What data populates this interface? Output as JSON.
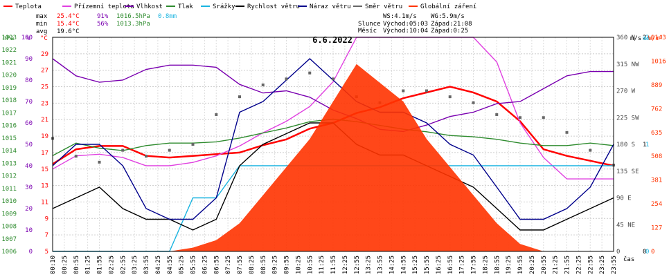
{
  "chart_data": {
    "type": "line",
    "title": "6.6.2022",
    "legend": [
      {
        "name": "Teplota",
        "color": "#ff0000"
      },
      {
        "name": "Přízemní teplota",
        "color": "#e040e0"
      },
      {
        "name": "Vlhkost",
        "color": "#7a00b0"
      },
      {
        "name": "Tlak",
        "color": "#2e8b2e"
      },
      {
        "name": "Srážky",
        "color": "#19b4e0"
      },
      {
        "name": "Rychlost větru",
        "color": "#000000"
      },
      {
        "name": "Náraz větru",
        "color": "#00008b"
      },
      {
        "name": "Směr větru",
        "color": "#666666"
      },
      {
        "name": "Globální záření",
        "color": "#ff3300"
      }
    ],
    "stats": {
      "max": {
        "label": "max",
        "temp": "25.4°C",
        "hum": "91%",
        "press": "1016.5hPa",
        "rain": "0.8mm"
      },
      "min": {
        "label": "min",
        "temp": "15.4°C",
        "hum": "56%",
        "press": "1013.3hPa"
      },
      "avg": {
        "label": "avg",
        "temp": "19.6°C"
      }
    },
    "astro": {
      "ws": "WS:4.1m/s",
      "wg": "WG:5.9m/s",
      "slunce_label": "Slunce",
      "slunce_rise": "Východ:05:03",
      "slunce_set": "Západ:21:08",
      "mesic_label": "Měsíc",
      "mesic_rise": "Východ:10:04",
      "mesic_set": "Západ:0:25"
    },
    "axes": {
      "hpa": {
        "unit": "hPa",
        "ticks": [
          "1006",
          "1007",
          "1008",
          "1009",
          "1010",
          "1011",
          "1012",
          "1013",
          "1014",
          "1015",
          "1016",
          "1017",
          "1018",
          "1019",
          "1020",
          "1021",
          "1022",
          "1023"
        ],
        "range": [
          1006,
          1023
        ]
      },
      "pct": {
        "unit": "%",
        "ticks": [
          "0",
          "10",
          "20",
          "30",
          "40",
          "50",
          "60",
          "70",
          "80",
          "90",
          "100"
        ],
        "range": [
          0,
          100
        ]
      },
      "temp": {
        "unit": "°C",
        "ticks": [
          "5",
          "7",
          "9",
          "11",
          "13",
          "15",
          "17",
          "19",
          "21",
          "23",
          "25",
          "27",
          "29"
        ],
        "range": [
          5,
          31
        ]
      },
      "wdir": {
        "unit": "m/s",
        "ticks": [
          {
            "v": 0,
            "t": "0"
          },
          {
            "v": 45,
            "t": "45 NE"
          },
          {
            "v": 90,
            "t": "90 E"
          },
          {
            "v": 135,
            "t": "135 SE"
          },
          {
            "v": 180,
            "t": "180 S"
          },
          {
            "v": 225,
            "t": "225 SW"
          },
          {
            "v": 270,
            "t": "270 W"
          },
          {
            "v": 315,
            "t": "315 NW"
          },
          {
            "v": 360,
            "t": "360 N"
          }
        ],
        "range": [
          0,
          360
        ]
      },
      "ms": {
        "ticks": [
          "0",
          "1",
          "2"
        ],
        "range": [
          0,
          2
        ]
      },
      "mm": {
        "unit": "mm",
        "ticks": [
          "0",
          "1",
          "2"
        ],
        "range": [
          0,
          2
        ]
      },
      "wm2": {
        "unit": "W/m²",
        "ticks": [
          "0",
          "127",
          "254",
          "381",
          "508",
          "635",
          "762",
          "889",
          "1016",
          "1143"
        ],
        "range": [
          0,
          1143
        ]
      },
      "x_unit": "čas",
      "x_ticks": [
        "00:10",
        "00:25",
        "00:55",
        "01:25",
        "01:55",
        "02:25",
        "02:55",
        "03:25",
        "03:55",
        "04:25",
        "04:55",
        "05:25",
        "05:55",
        "06:25",
        "06:55",
        "07:25",
        "07:55",
        "08:25",
        "08:55",
        "09:25",
        "09:55",
        "10:25",
        "10:55",
        "11:25",
        "11:55",
        "12:25",
        "12:55",
        "13:25",
        "13:55",
        "14:25",
        "14:55",
        "15:25",
        "15:55",
        "16:25",
        "16:55",
        "17:25",
        "17:55",
        "18:25",
        "18:55",
        "19:25",
        "19:55",
        "20:25",
        "20:55",
        "21:25",
        "21:55",
        "22:25",
        "22:55",
        "23:25",
        "23:55"
      ]
    },
    "series": [
      {
        "name": "Teplota",
        "unit": "°C",
        "x_hours": [
          0,
          1,
          2,
          3,
          4,
          5,
          6,
          7,
          8,
          9,
          10,
          11,
          12,
          13,
          14,
          15,
          16,
          17,
          18,
          19,
          20,
          21,
          22,
          23,
          24
        ],
        "values": [
          15.6,
          17.4,
          17.8,
          17.8,
          16.6,
          16.4,
          16.6,
          16.8,
          17.0,
          17.9,
          18.6,
          19.9,
          20.6,
          21.8,
          22.5,
          23.6,
          24.3,
          25.0,
          24.3,
          23.2,
          20.8,
          17.4,
          16.6,
          16.0,
          15.4
        ]
      },
      {
        "name": "Přízemní teplota",
        "unit": "°C",
        "x_hours": [
          0,
          1,
          2,
          3,
          4,
          5,
          6,
          7,
          8,
          9,
          10,
          11,
          12,
          13,
          14,
          15,
          16,
          17,
          18,
          19,
          20,
          21,
          22,
          23,
          24
        ],
        "values": [
          15.0,
          16.6,
          16.8,
          16.4,
          15.4,
          15.4,
          15.8,
          16.6,
          17.8,
          19.4,
          20.8,
          22.6,
          25.6,
          31.0,
          31.0,
          31.0,
          31.0,
          31.0,
          31.0,
          28.0,
          20.6,
          16.4,
          13.8,
          13.8,
          13.8
        ]
      },
      {
        "name": "Vlhkost",
        "unit": "%",
        "x_hours": [
          0,
          1,
          2,
          3,
          4,
          5,
          6,
          7,
          8,
          9,
          10,
          11,
          12,
          13,
          14,
          15,
          16,
          17,
          18,
          19,
          20,
          21,
          22,
          23,
          24
        ],
        "values": [
          90,
          82,
          79,
          80,
          85,
          87,
          87,
          86,
          78,
          74,
          75,
          72,
          66,
          62,
          57,
          56,
          59,
          63,
          65,
          69,
          70,
          76,
          82,
          84,
          84
        ]
      },
      {
        "name": "Tlak",
        "unit": "hPa",
        "x_hours": [
          0,
          1,
          2,
          3,
          4,
          5,
          6,
          7,
          8,
          9,
          10,
          11,
          12,
          13,
          14,
          15,
          16,
          17,
          18,
          19,
          20,
          21,
          22,
          23,
          24
        ],
        "values": [
          1013.6,
          1014.6,
          1014.2,
          1014.0,
          1014.4,
          1014.6,
          1014.6,
          1014.7,
          1015.0,
          1015.4,
          1015.8,
          1016.3,
          1016.5,
          1016.3,
          1016.0,
          1015.7,
          1015.5,
          1015.2,
          1015.1,
          1014.9,
          1014.6,
          1014.4,
          1014.4,
          1014.6,
          1014.4
        ]
      },
      {
        "name": "Srážky",
        "unit": "mm",
        "x_hours": [
          0,
          1,
          2,
          3,
          4,
          5,
          6,
          7,
          8,
          9,
          10,
          11,
          12,
          13,
          14,
          15,
          16,
          17,
          18,
          19,
          20,
          21,
          22,
          23,
          24
        ],
        "values": [
          0,
          0,
          0,
          0,
          0,
          0,
          0.5,
          0.5,
          0.8,
          0.8,
          0.8,
          0.8,
          0.8,
          0.8,
          0.8,
          0.8,
          0.8,
          0.8,
          0.8,
          0.8,
          0.8,
          0.8,
          0.8,
          0.8,
          0.8
        ]
      },
      {
        "name": "Rychlost větru",
        "unit": "m/s",
        "x_hours": [
          0,
          1,
          2,
          3,
          4,
          5,
          6,
          7,
          8,
          9,
          10,
          11,
          12,
          13,
          14,
          15,
          16,
          17,
          18,
          19,
          20,
          21,
          22,
          23,
          24
        ],
        "values": [
          0.4,
          0.5,
          0.6,
          0.4,
          0.3,
          0.3,
          0.2,
          0.3,
          0.8,
          1.0,
          1.1,
          1.2,
          1.2,
          1.0,
          0.9,
          0.9,
          0.8,
          0.7,
          0.6,
          0.4,
          0.2,
          0.2,
          0.3,
          0.4,
          0.5
        ]
      },
      {
        "name": "Náraz větru",
        "unit": "m/s",
        "x_hours": [
          0,
          1,
          2,
          3,
          4,
          5,
          6,
          7,
          8,
          9,
          10,
          11,
          12,
          13,
          14,
          15,
          16,
          17,
          18,
          19,
          20,
          21,
          22,
          23,
          24
        ],
        "values": [
          0.8,
          1.0,
          1.0,
          0.8,
          0.4,
          0.3,
          0.3,
          0.5,
          1.3,
          1.4,
          1.6,
          1.8,
          1.6,
          1.4,
          1.3,
          1.3,
          1.2,
          1.0,
          0.9,
          0.6,
          0.3,
          0.3,
          0.4,
          0.6,
          1.0
        ]
      },
      {
        "name": "Směr větru",
        "unit": "°",
        "x_hours": [
          0,
          1,
          2,
          3,
          4,
          5,
          6,
          7,
          8,
          9,
          10,
          11,
          12,
          13,
          14,
          15,
          16,
          17,
          18,
          19,
          20,
          21,
          22,
          23,
          24
        ],
        "values": [
          190,
          160,
          150,
          170,
          160,
          170,
          180,
          230,
          260,
          280,
          290,
          300,
          290,
          260,
          250,
          270,
          270,
          260,
          250,
          230,
          225,
          225,
          200,
          170,
          145
        ]
      },
      {
        "name": "Globální záření",
        "unit": "W/m²",
        "x_hours": [
          5,
          6,
          7,
          8,
          9,
          10,
          11,
          12,
          13,
          14,
          15,
          16,
          17,
          18,
          19,
          20,
          21
        ],
        "values": [
          0,
          20,
          60,
          150,
          300,
          450,
          600,
          800,
          1000,
          900,
          800,
          600,
          450,
          300,
          150,
          40,
          0
        ]
      }
    ]
  }
}
